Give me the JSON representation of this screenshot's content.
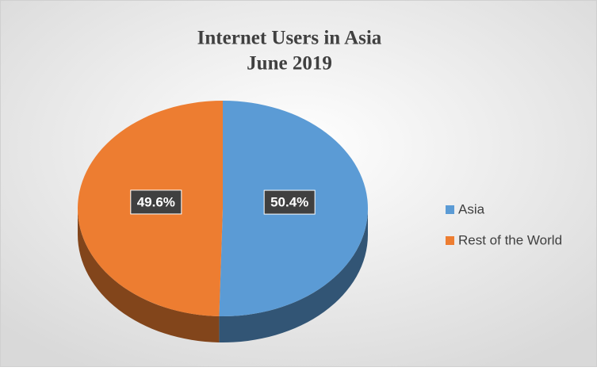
{
  "chart_data": {
    "type": "pie",
    "title": "Internet Users in Asia",
    "subtitle": "June 2019",
    "categories": [
      "Asia",
      "Rest of the World"
    ],
    "values": [
      50.4,
      49.6
    ],
    "value_labels": [
      "50.4%",
      "49.6%"
    ],
    "colors": [
      "#5b9bd5",
      "#ed7d31"
    ],
    "legend": "right"
  }
}
